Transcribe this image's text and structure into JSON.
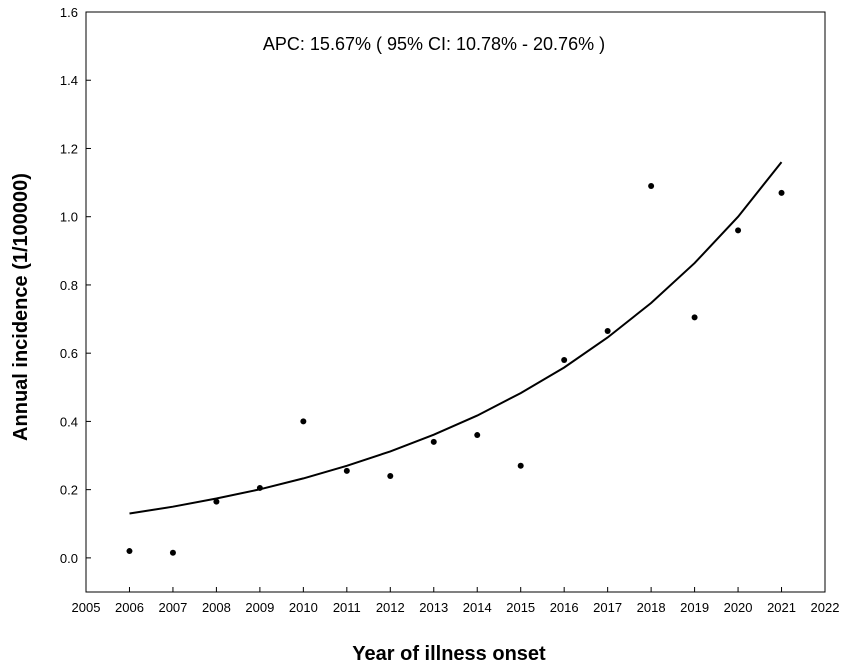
{
  "chart_data": {
    "type": "scatter",
    "title": "",
    "annotation": "APC: 15.67% ( 95% CI: 10.78% - 20.76% )",
    "xlabel": "Year of illness onset",
    "ylabel": "Annual incidence (1/100000)",
    "xlim": [
      2005,
      2022
    ],
    "ylim": [
      -0.1,
      1.6
    ],
    "x_ticks": [
      2005,
      2006,
      2007,
      2008,
      2009,
      2010,
      2011,
      2012,
      2013,
      2014,
      2015,
      2016,
      2017,
      2018,
      2019,
      2020,
      2021,
      2022
    ],
    "y_ticks": [
      "0.0",
      "0.2",
      "0.4",
      "0.6",
      "0.8",
      "1.0",
      "1.2",
      "1.4",
      "1.6"
    ],
    "grid": false,
    "legend": "none",
    "series": [
      {
        "kind": "points",
        "x": [
          2006,
          2007,
          2008,
          2009,
          2010,
          2011,
          2012,
          2013,
          2014,
          2015,
          2016,
          2017,
          2018,
          2019,
          2020,
          2021
        ],
        "y": [
          0.02,
          0.015,
          0.165,
          0.205,
          0.4,
          0.255,
          0.24,
          0.34,
          0.36,
          0.27,
          0.58,
          0.665,
          1.09,
          0.705,
          0.96,
          1.07
        ]
      },
      {
        "kind": "fitted-curve",
        "x": [
          2006,
          2007,
          2008,
          2009,
          2010,
          2011,
          2012,
          2013,
          2014,
          2015,
          2016,
          2017,
          2018,
          2019,
          2020,
          2021
        ],
        "y": [
          0.13,
          0.15,
          0.174,
          0.201,
          0.233,
          0.27,
          0.312,
          0.361,
          0.417,
          0.483,
          0.558,
          0.646,
          0.747,
          0.864,
          1.0,
          1.16
        ]
      }
    ]
  }
}
